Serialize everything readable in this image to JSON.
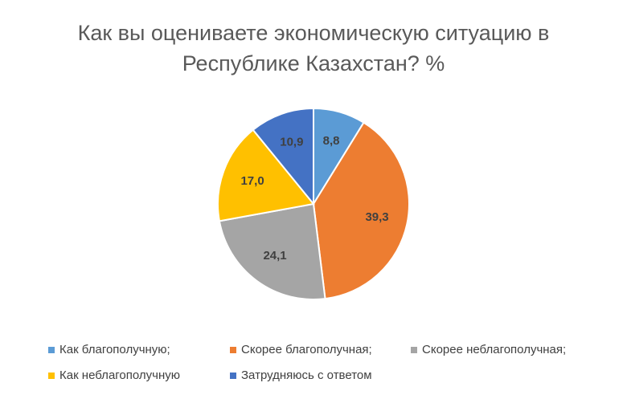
{
  "chart_data": {
    "type": "pie",
    "title": "Как вы оцениваете экономическую ситуацию в Республике Казахстан?  %",
    "categories": [
      "Как благополучную;",
      "Скорее благополучная;",
      "Скорее неблагополучная;",
      "Как неблагополучную",
      "Затрудняюсь с ответом"
    ],
    "values": [
      8.8,
      39.3,
      24.1,
      17.0,
      10.9
    ],
    "value_labels": [
      "8,8",
      "39,3",
      "24,1",
      "17,0",
      "10,9"
    ],
    "colors": [
      "#5b9bd5",
      "#ed7d31",
      "#a5a5a5",
      "#ffc000",
      "#4472c4"
    ],
    "legend": "bottom"
  }
}
